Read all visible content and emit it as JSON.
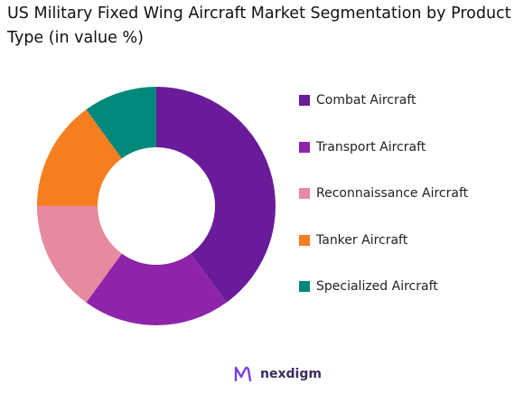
{
  "title": "US Military Fixed Wing Aircraft Market Segmentation by Product Type (in value %)",
  "chart_data": {
    "type": "pie",
    "donut": true,
    "title": "US Military Fixed Wing Aircraft Market Segmentation by Product Type (in value %)",
    "categories": [
      "Combat Aircraft",
      "Transport Aircraft",
      "Reconnaissance Aircraft",
      "Tanker Aircraft",
      "Specialized Aircraft"
    ],
    "values": [
      40,
      20,
      15,
      15,
      10
    ],
    "colors": [
      "#6a1b9a",
      "#8e24aa",
      "#e68aa0",
      "#f57f20",
      "#00897b"
    ],
    "legend_position": "right"
  },
  "brand": {
    "name": "nexdigm",
    "icon": "nexdigm-logo-icon",
    "icon_color": "#7b3fe4"
  }
}
